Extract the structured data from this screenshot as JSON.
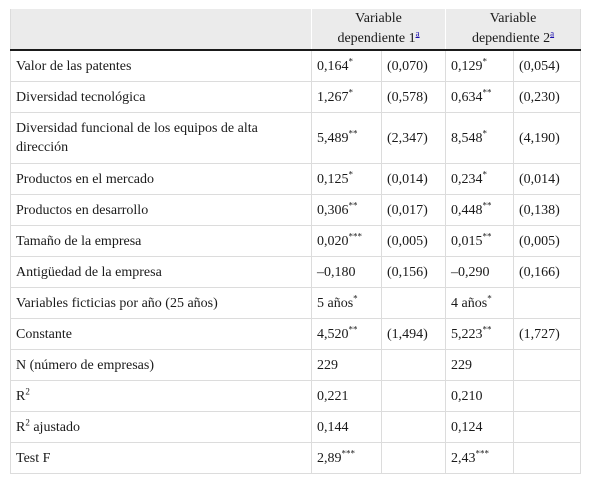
{
  "header": {
    "col1_line1": "Variable",
    "col1_line2": "dependiente 1",
    "col1_note": "a",
    "col2_line1": "Variable",
    "col2_line2": "dependiente 2",
    "col2_note": "a"
  },
  "rows": [
    {
      "label": "Valor de las patentes",
      "v1": "0,164",
      "s1": "*",
      "e1": "(0,070)",
      "v2": "0,129",
      "s2": "*",
      "e2": "(0,054)"
    },
    {
      "label": "Diversidad tecnológica",
      "v1": "1,267",
      "s1": "*",
      "e1": "(0,578)",
      "v2": "0,634",
      "s2": "**",
      "e2": "(0,230)"
    },
    {
      "label": "Diversidad funcional de los equipos de alta dirección",
      "v1": "5,489",
      "s1": "**",
      "e1": "(2,347)",
      "v2": "8,548",
      "s2": "*",
      "e2": "(4,190)"
    },
    {
      "label": "Productos en el mercado",
      "v1": "0,125",
      "s1": "*",
      "e1": "(0,014)",
      "v2": "0,234",
      "s2": "*",
      "e2": "(0,014)"
    },
    {
      "label": "Productos en desarrollo",
      "v1": "0,306",
      "s1": "**",
      "e1": "(0,017)",
      "v2": "0,448",
      "s2": "**",
      "e2": "(0,138)"
    },
    {
      "label": "Tamaño de la empresa",
      "v1": "0,020",
      "s1": "***",
      "e1": "(0,005)",
      "v2": "0,015",
      "s2": "**",
      "e2": "(0,005)"
    },
    {
      "label": "Antigüedad de la empresa",
      "v1": "–0,180",
      "s1": "",
      "e1": "(0,156)",
      "v2": "–0,290",
      "s2": "",
      "e2": "(0,166)"
    },
    {
      "label": "Variables ficticias por año (25 años)",
      "v1": "5 años",
      "s1": "*",
      "e1": "",
      "v2": "4 años",
      "s2": "*",
      "e2": ""
    },
    {
      "label": "Constante",
      "v1": "4,520",
      "s1": "**",
      "e1": "(1,494)",
      "v2": "5,223",
      "s2": "**",
      "e2": "(1,727)"
    },
    {
      "label": "N (número de empresas)",
      "v1": "229",
      "s1": "",
      "e1": "",
      "v2": "229",
      "s2": "",
      "e2": ""
    },
    {
      "label": "R",
      "label_sup": "2",
      "v1": "0,221",
      "s1": "",
      "e1": "",
      "v2": "0,210",
      "s2": "",
      "e2": ""
    },
    {
      "label": "R",
      "label_sup": "2",
      "label_suffix": " ajustado",
      "v1": "0,144",
      "s1": "",
      "e1": "",
      "v2": "0,124",
      "s2": "",
      "e2": ""
    },
    {
      "label": "Test F",
      "v1": "2,89",
      "s1": "***",
      "e1": "",
      "v2": "2,43",
      "s2": "***",
      "e2": ""
    }
  ]
}
